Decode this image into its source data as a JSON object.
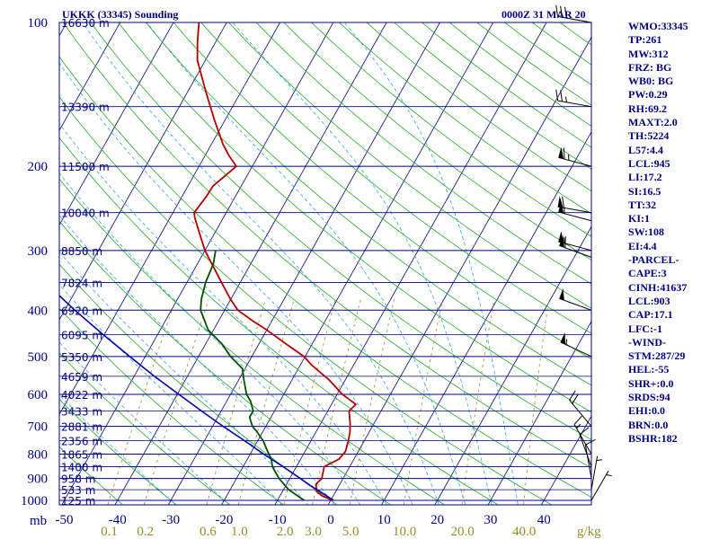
{
  "header": {
    "station": "UKKK (33345) Sounding",
    "time": "0000Z 31 MAR 20"
  },
  "indices": [
    "WMO:33345",
    "TP:261",
    "MW:312",
    "FRZ: BG",
    "WB0: BG",
    "PW:0.29",
    "RH:69.2",
    "MAXT:2.0",
    "TH:5224",
    "L57:4.4",
    "LCL:945",
    "LI:17.2",
    "SI:16.5",
    "TT:32",
    "KI:1",
    "SW:108",
    "EI:4.4",
    "-PARCEL-",
    "CAPE:3",
    "CINH:41637",
    "LCL:903",
    "CAP:17.1",
    "LFC:-1",
    "-WIND-",
    "STM:287/29",
    "HEL:-55",
    "SHR+:0.0",
    "SRDS:94",
    "EHI:0.0",
    "BRN:0.0",
    "BSHR:182"
  ],
  "colors": {
    "frame": "#000080",
    "isobar": "#000080",
    "isotherm": "#000080",
    "dry_adiabat": "#22aa22",
    "moist_adiabat": "#33a3dd",
    "mixing_ratio": "#9a8a2a",
    "temperature": "#b00000",
    "dewpoint": "#005000",
    "parcel": "#0000b0",
    "wind_barb": "#000000"
  },
  "chart_data": {
    "type": "skew-t",
    "xlabel_unit": "mb",
    "mixing_ratio_unit": "g/kg",
    "pressure_levels": [
      100,
      200,
      300,
      400,
      500,
      600,
      700,
      800,
      900,
      1000
    ],
    "pressure_tick_labels": [
      "100",
      "200",
      "300",
      "400",
      "500",
      "600",
      "700",
      "800",
      "900",
      "1000"
    ],
    "temperature_ticks": [
      -50,
      -40,
      -30,
      -20,
      -10,
      0,
      10,
      20,
      30,
      40
    ],
    "temperature_tick_labels": [
      "-50",
      "-40",
      "-30",
      "-20",
      "-10",
      "0",
      "10",
      "20",
      "30",
      "40"
    ],
    "mixing_ratio_labels": [
      "0.1",
      "0.2",
      "0.6",
      "1.0",
      "2.0",
      "3.0",
      "5.0",
      "10.0",
      "20.0",
      "40.0"
    ],
    "mixing_ratio_values": [
      0.1,
      0.2,
      0.6,
      1.0,
      2.0,
      3.0,
      5.0,
      10.0,
      20.0,
      40.0
    ],
    "height_levels": [
      {
        "p": 100,
        "label": "16630 m"
      },
      {
        "p": 150,
        "label": "13390 m"
      },
      {
        "p": 200,
        "label": "11500 m"
      },
      {
        "p": 250,
        "label": "10040 m"
      },
      {
        "p": 300,
        "label": "8850 m"
      },
      {
        "p": 350,
        "label": "7824 m"
      },
      {
        "p": 400,
        "label": "6920 m"
      },
      {
        "p": 450,
        "label": "6095 m"
      },
      {
        "p": 500,
        "label": "5350 m"
      },
      {
        "p": 550,
        "label": "4659 m"
      },
      {
        "p": 600,
        "label": "4022 m"
      },
      {
        "p": 650,
        "label": "3433 m"
      },
      {
        "p": 700,
        "label": "2881 m"
      },
      {
        "p": 750,
        "label": "2356 m"
      },
      {
        "p": 800,
        "label": "1865 m"
      },
      {
        "p": 850,
        "label": "1400 m"
      },
      {
        "p": 900,
        "label": "958 m"
      },
      {
        "p": 950,
        "label": "533 m"
      },
      {
        "p": 1000,
        "label": "125 m"
      }
    ],
    "series": [
      {
        "key": "temperature",
        "points": [
          [
            1000,
            0.5
          ],
          [
            980,
            -2.0
          ],
          [
            960,
            -3.5
          ],
          [
            925,
            -4.5
          ],
          [
            900,
            -4.0
          ],
          [
            850,
            -4.8
          ],
          [
            820,
            -2.8
          ],
          [
            790,
            -2.4
          ],
          [
            750,
            -3.0
          ],
          [
            720,
            -3.6
          ],
          [
            690,
            -4.5
          ],
          [
            650,
            -6.0
          ],
          [
            630,
            -5.4
          ],
          [
            600,
            -9.0
          ],
          [
            560,
            -13.0
          ],
          [
            520,
            -18.0
          ],
          [
            500,
            -20.2
          ],
          [
            470,
            -25.0
          ],
          [
            440,
            -30.0
          ],
          [
            420,
            -33.8
          ],
          [
            400,
            -37.5
          ],
          [
            380,
            -40.0
          ],
          [
            350,
            -43.5
          ],
          [
            300,
            -50.0
          ],
          [
            270,
            -53.6
          ],
          [
            255,
            -55.5
          ],
          [
            250,
            -56.0
          ],
          [
            230,
            -55.4
          ],
          [
            220,
            -55.3
          ],
          [
            200,
            -53.0
          ],
          [
            190,
            -55.5
          ],
          [
            180,
            -57.8
          ],
          [
            160,
            -62.0
          ],
          [
            140,
            -66.5
          ],
          [
            120,
            -71.5
          ],
          [
            110,
            -73.4
          ],
          [
            100,
            -75.2
          ]
        ]
      },
      {
        "key": "dewpoint",
        "points": [
          [
            1000,
            -5.0
          ],
          [
            950,
            -9.0
          ],
          [
            900,
            -12.0
          ],
          [
            850,
            -14.5
          ],
          [
            820,
            -15.5
          ],
          [
            790,
            -17.0
          ],
          [
            750,
            -19.0
          ],
          [
            720,
            -21.0
          ],
          [
            700,
            -22.5
          ],
          [
            670,
            -24.0
          ],
          [
            650,
            -24.0
          ],
          [
            620,
            -25.5
          ],
          [
            600,
            -27.0
          ],
          [
            560,
            -29.0
          ],
          [
            530,
            -30.5
          ],
          [
            500,
            -34.0
          ],
          [
            470,
            -37.0
          ],
          [
            440,
            -41.0
          ],
          [
            400,
            -44.5
          ],
          [
            380,
            -45.5
          ],
          [
            350,
            -46.5
          ],
          [
            320,
            -47.0
          ],
          [
            300,
            -48.0
          ]
        ]
      },
      {
        "key": "parcel",
        "points": [
          [
            1000,
            0.5
          ],
          [
            960,
            -2.8
          ],
          [
            930,
            -5.5
          ],
          [
            900,
            -8.0
          ],
          [
            850,
            -12.5
          ],
          [
            800,
            -17.5
          ],
          [
            750,
            -22.5
          ],
          [
            700,
            -28.0
          ],
          [
            650,
            -33.7
          ],
          [
            600,
            -39.7
          ],
          [
            550,
            -46.2
          ],
          [
            500,
            -52.9
          ],
          [
            450,
            -60.2
          ],
          [
            400,
            -68.1
          ],
          [
            350,
            -76.6
          ],
          [
            300,
            -85.9
          ],
          [
            250,
            -96.0
          ],
          [
            200,
            -107.4
          ],
          [
            160,
            -117.6
          ],
          [
            130,
            -125.5
          ],
          [
            115,
            -130.0
          ]
        ]
      }
    ],
    "wind_barbs": [
      {
        "p": 100,
        "dir": 280,
        "spd": 30
      },
      {
        "p": 150,
        "dir": 280,
        "spd": 25
      },
      {
        "p": 200,
        "dir": 285,
        "spd": 65
      },
      {
        "p": 250,
        "dir": 280,
        "spd": 60
      },
      {
        "p": 260,
        "dir": 285,
        "spd": 55
      },
      {
        "p": 300,
        "dir": 285,
        "spd": 55
      },
      {
        "p": 310,
        "dir": 290,
        "spd": 60
      },
      {
        "p": 400,
        "dir": 290,
        "spd": 50
      },
      {
        "p": 500,
        "dir": 295,
        "spd": 55
      },
      {
        "p": 700,
        "dir": 320,
        "spd": 20
      },
      {
        "p": 800,
        "dir": 330,
        "spd": 15
      },
      {
        "p": 850,
        "dir": 340,
        "spd": 10
      },
      {
        "p": 900,
        "dir": 350,
        "spd": 10
      },
      {
        "p": 950,
        "dir": 10,
        "spd": 5
      },
      {
        "p": 1000,
        "dir": 30,
        "spd": 5
      }
    ]
  }
}
